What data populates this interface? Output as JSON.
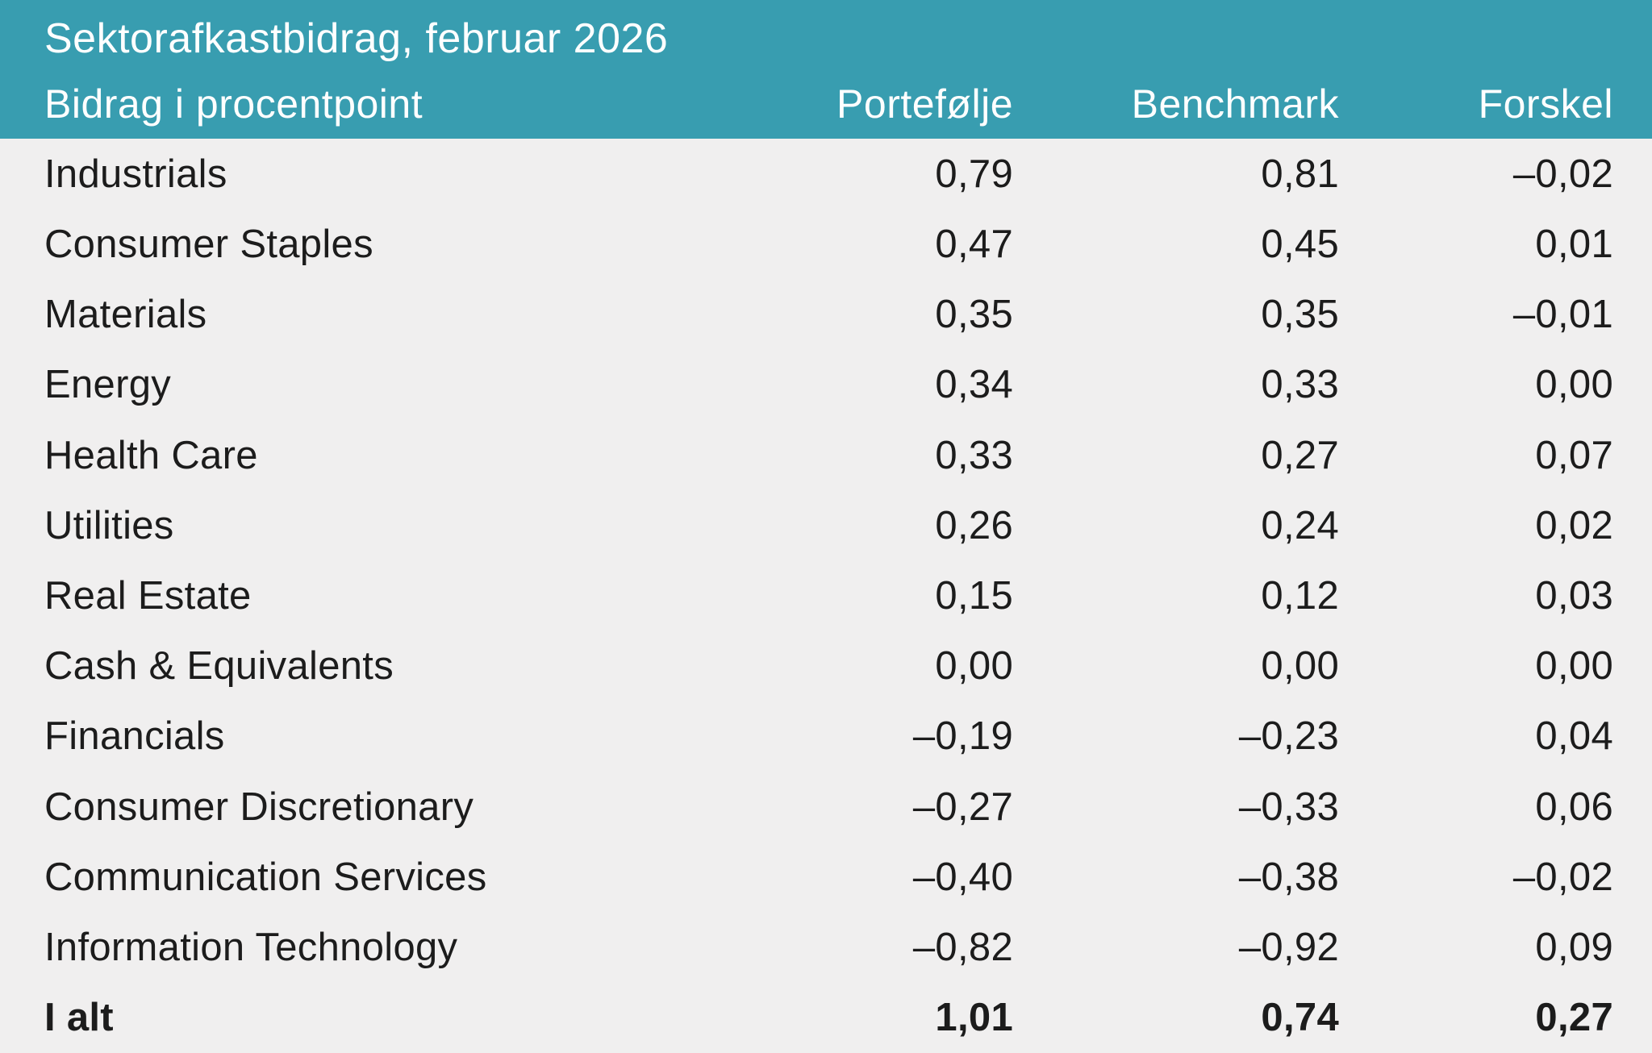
{
  "chart_data": {
    "type": "table",
    "title": "Sektorafkastbidrag, februar 2026",
    "header": {
      "label_column": "Bidrag i procentpoint",
      "value_columns": [
        "Portefølje",
        "Benchmark",
        "Forskel"
      ]
    },
    "rows": [
      {
        "label": "Industrials",
        "portefolje": "0,79",
        "benchmark": "0,81",
        "forskel": "–0,02"
      },
      {
        "label": "Consumer Staples",
        "portefolje": "0,47",
        "benchmark": "0,45",
        "forskel": "0,01"
      },
      {
        "label": "Materials",
        "portefolje": "0,35",
        "benchmark": "0,35",
        "forskel": "–0,01"
      },
      {
        "label": "Energy",
        "portefolje": "0,34",
        "benchmark": "0,33",
        "forskel": "0,00"
      },
      {
        "label": "Health Care",
        "portefolje": "0,33",
        "benchmark": "0,27",
        "forskel": "0,07"
      },
      {
        "label": "Utilities",
        "portefolje": "0,26",
        "benchmark": "0,24",
        "forskel": "0,02"
      },
      {
        "label": "Real Estate",
        "portefolje": "0,15",
        "benchmark": "0,12",
        "forskel": "0,03"
      },
      {
        "label": "Cash & Equivalents",
        "portefolje": "0,00",
        "benchmark": "0,00",
        "forskel": "0,00"
      },
      {
        "label": "Financials",
        "portefolje": "–0,19",
        "benchmark": "–0,23",
        "forskel": "0,04"
      },
      {
        "label": "Consumer Discretionary",
        "portefolje": "–0,27",
        "benchmark": "–0,33",
        "forskel": "0,06"
      },
      {
        "label": "Communication Services",
        "portefolje": "–0,40",
        "benchmark": "–0,38",
        "forskel": "–0,02"
      },
      {
        "label": "Information Technology",
        "portefolje": "–0,82",
        "benchmark": "–0,92",
        "forskel": "0,09"
      }
    ],
    "total": {
      "label": "I alt",
      "portefolje": "1,01",
      "benchmark": "0,74",
      "forskel": "0,27"
    },
    "layout_hints": {
      "value_columns_alignment": "right",
      "grid": "off",
      "decimal_separator": ","
    }
  },
  "colors": {
    "header_bg": "#389DB0",
    "body_bg": "#F0EFEF",
    "header_text": "#FFFFFF",
    "body_text": "#1C1C1C"
  }
}
